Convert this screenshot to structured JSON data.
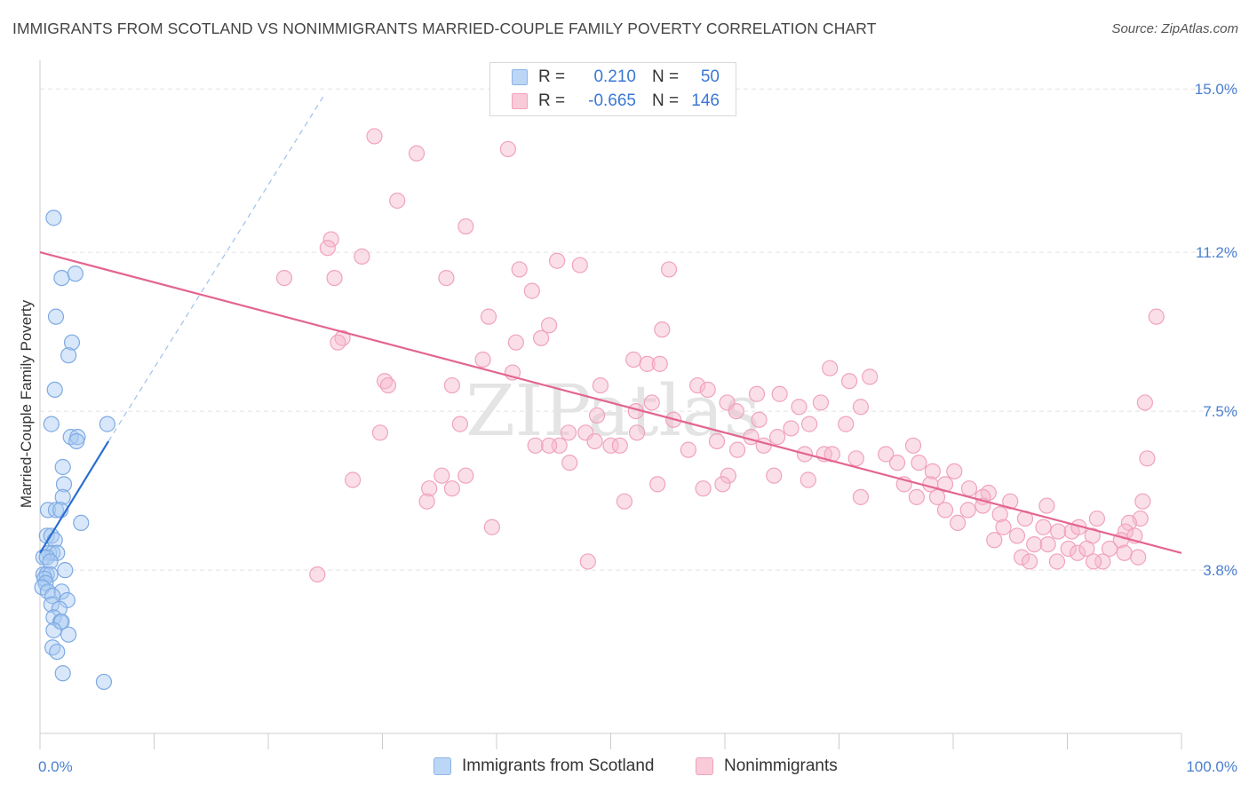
{
  "title": "IMMIGRANTS FROM SCOTLAND VS NONIMMIGRANTS MARRIED-COUPLE FAMILY POVERTY CORRELATION CHART",
  "source": "Source: ZipAtlas.com",
  "watermark": "ZIPatlas",
  "legend": {
    "rows": [
      {
        "r_label": "R =",
        "r_value": "0.210",
        "n_label": "N =",
        "n_value": "50",
        "color": "#a9c9f2"
      },
      {
        "r_label": "R =",
        "r_value": "-0.665",
        "n_label": "N =",
        "n_value": "146",
        "color": "#f6b9cb"
      }
    ]
  },
  "bottom_legend": {
    "series1": "Immigrants from Scotland",
    "series2": "Nonimmigrants"
  },
  "chart_data": {
    "type": "scatter",
    "title": "IMMIGRANTS FROM SCOTLAND VS NONIMMIGRANTS MARRIED-COUPLE FAMILY POVERTY CORRELATION CHART",
    "xlabel": "",
    "ylabel": "Married-Couple Family Poverty",
    "xlim": [
      0,
      100
    ],
    "ylim": [
      0,
      15.5
    ],
    "x_tick_labels": [
      "0.0%",
      "100.0%"
    ],
    "y_ticks": [
      3.8,
      7.5,
      11.2,
      15.0
    ],
    "y_tick_labels": [
      "3.8%",
      "7.5%",
      "11.2%",
      "15.0%"
    ],
    "grid": true,
    "colors": {
      "series1": "#a9c9f2",
      "series1_line": "#2b6fd1",
      "series2": "#f6b9cb",
      "series2_line": "#e36591"
    },
    "series": [
      {
        "name": "Immigrants from Scotland",
        "trend": {
          "x": [
            0,
            6
          ],
          "y": [
            4.2,
            6.8
          ]
        },
        "trend_extension": {
          "x": [
            6,
            25
          ],
          "y": [
            6.8,
            14.9
          ]
        },
        "points": [
          [
            1.2,
            12.0
          ],
          [
            1.9,
            10.6
          ],
          [
            3.1,
            10.7
          ],
          [
            1.4,
            9.7
          ],
          [
            2.8,
            9.1
          ],
          [
            2.5,
            8.8
          ],
          [
            1.3,
            8.0
          ],
          [
            1.0,
            7.2
          ],
          [
            5.9,
            7.2
          ],
          [
            2.7,
            6.9
          ],
          [
            3.3,
            6.9
          ],
          [
            3.2,
            6.8
          ],
          [
            2.0,
            6.2
          ],
          [
            2.1,
            5.8
          ],
          [
            2.0,
            5.5
          ],
          [
            0.7,
            5.2
          ],
          [
            1.4,
            5.2
          ],
          [
            1.8,
            5.2
          ],
          [
            3.6,
            4.9
          ],
          [
            0.6,
            4.6
          ],
          [
            1.0,
            4.6
          ],
          [
            1.3,
            4.5
          ],
          [
            0.8,
            4.2
          ],
          [
            1.1,
            4.2
          ],
          [
            1.5,
            4.2
          ],
          [
            0.3,
            4.1
          ],
          [
            0.6,
            4.1
          ],
          [
            0.9,
            4.0
          ],
          [
            2.2,
            3.8
          ],
          [
            0.3,
            3.7
          ],
          [
            0.6,
            3.7
          ],
          [
            0.9,
            3.7
          ],
          [
            0.4,
            3.6
          ],
          [
            0.5,
            3.5
          ],
          [
            0.2,
            3.4
          ],
          [
            0.7,
            3.3
          ],
          [
            1.9,
            3.3
          ],
          [
            1.1,
            3.2
          ],
          [
            2.4,
            3.1
          ],
          [
            1.0,
            3.0
          ],
          [
            1.7,
            2.9
          ],
          [
            1.2,
            2.7
          ],
          [
            1.8,
            2.6
          ],
          [
            1.9,
            2.6
          ],
          [
            1.2,
            2.4
          ],
          [
            2.5,
            2.3
          ],
          [
            1.1,
            2.0
          ],
          [
            1.5,
            1.9
          ],
          [
            2.0,
            1.4
          ],
          [
            5.6,
            1.2
          ]
        ]
      },
      {
        "name": "Nonimmigrants",
        "trend": {
          "x": [
            0,
            100
          ],
          "y": [
            11.2,
            4.2
          ]
        },
        "points": [
          [
            29.3,
            13.9
          ],
          [
            33.0,
            13.5
          ],
          [
            41.0,
            13.6
          ],
          [
            31.3,
            12.4
          ],
          [
            37.3,
            11.8
          ],
          [
            25.5,
            11.5
          ],
          [
            25.2,
            11.3
          ],
          [
            28.2,
            11.1
          ],
          [
            45.3,
            11.0
          ],
          [
            47.3,
            10.9
          ],
          [
            42.0,
            10.8
          ],
          [
            21.4,
            10.6
          ],
          [
            25.8,
            10.6
          ],
          [
            35.6,
            10.6
          ],
          [
            55.1,
            10.8
          ],
          [
            43.1,
            10.3
          ],
          [
            39.3,
            9.7
          ],
          [
            44.6,
            9.5
          ],
          [
            54.5,
            9.4
          ],
          [
            43.9,
            9.2
          ],
          [
            26.5,
            9.2
          ],
          [
            26.1,
            9.1
          ],
          [
            41.7,
            9.1
          ],
          [
            97.8,
            9.7
          ],
          [
            38.8,
            8.7
          ],
          [
            52.0,
            8.7
          ],
          [
            53.2,
            8.6
          ],
          [
            54.3,
            8.6
          ],
          [
            69.2,
            8.5
          ],
          [
            72.7,
            8.3
          ],
          [
            70.9,
            8.2
          ],
          [
            41.4,
            8.4
          ],
          [
            30.2,
            8.2
          ],
          [
            30.5,
            8.1
          ],
          [
            36.1,
            8.1
          ],
          [
            49.1,
            8.1
          ],
          [
            57.6,
            8.1
          ],
          [
            58.5,
            8.0
          ],
          [
            62.8,
            7.9
          ],
          [
            64.8,
            7.9
          ],
          [
            53.6,
            7.7
          ],
          [
            60.2,
            7.7
          ],
          [
            61.0,
            7.5
          ],
          [
            66.5,
            7.6
          ],
          [
            68.4,
            7.7
          ],
          [
            96.8,
            7.7
          ],
          [
            52.2,
            7.5
          ],
          [
            71.9,
            7.6
          ],
          [
            48.8,
            7.4
          ],
          [
            55.5,
            7.3
          ],
          [
            63.0,
            7.3
          ],
          [
            65.8,
            7.1
          ],
          [
            67.4,
            7.2
          ],
          [
            70.6,
            7.2
          ],
          [
            36.8,
            7.2
          ],
          [
            47.8,
            7.0
          ],
          [
            29.8,
            7.0
          ],
          [
            46.3,
            7.0
          ],
          [
            52.3,
            7.0
          ],
          [
            62.3,
            6.9
          ],
          [
            64.6,
            6.9
          ],
          [
            48.6,
            6.8
          ],
          [
            45.5,
            6.7
          ],
          [
            50.0,
            6.7
          ],
          [
            50.8,
            6.7
          ],
          [
            59.3,
            6.8
          ],
          [
            63.4,
            6.7
          ],
          [
            76.5,
            6.7
          ],
          [
            43.4,
            6.7
          ],
          [
            44.6,
            6.7
          ],
          [
            56.8,
            6.6
          ],
          [
            61.1,
            6.6
          ],
          [
            67.0,
            6.5
          ],
          [
            68.7,
            6.5
          ],
          [
            69.4,
            6.5
          ],
          [
            71.5,
            6.4
          ],
          [
            74.1,
            6.5
          ],
          [
            75.1,
            6.3
          ],
          [
            77.0,
            6.3
          ],
          [
            78.2,
            6.1
          ],
          [
            80.1,
            6.1
          ],
          [
            97.0,
            6.4
          ],
          [
            46.4,
            6.3
          ],
          [
            35.2,
            6.0
          ],
          [
            37.3,
            6.0
          ],
          [
            27.4,
            5.9
          ],
          [
            60.3,
            6.0
          ],
          [
            64.3,
            6.0
          ],
          [
            67.3,
            5.9
          ],
          [
            75.7,
            5.8
          ],
          [
            78.0,
            5.8
          ],
          [
            59.8,
            5.8
          ],
          [
            54.1,
            5.8
          ],
          [
            58.1,
            5.7
          ],
          [
            36.1,
            5.7
          ],
          [
            34.1,
            5.7
          ],
          [
            79.3,
            5.8
          ],
          [
            76.8,
            5.5
          ],
          [
            81.4,
            5.7
          ],
          [
            83.1,
            5.6
          ],
          [
            78.6,
            5.5
          ],
          [
            71.9,
            5.5
          ],
          [
            82.6,
            5.5
          ],
          [
            85.0,
            5.4
          ],
          [
            88.2,
            5.3
          ],
          [
            96.6,
            5.4
          ],
          [
            33.9,
            5.4
          ],
          [
            51.2,
            5.4
          ],
          [
            79.3,
            5.2
          ],
          [
            81.3,
            5.2
          ],
          [
            82.6,
            5.3
          ],
          [
            84.1,
            5.1
          ],
          [
            86.3,
            5.0
          ],
          [
            92.6,
            5.0
          ],
          [
            96.4,
            5.0
          ],
          [
            95.4,
            4.9
          ],
          [
            80.4,
            4.9
          ],
          [
            84.4,
            4.8
          ],
          [
            87.9,
            4.8
          ],
          [
            89.2,
            4.7
          ],
          [
            90.4,
            4.7
          ],
          [
            91.0,
            4.8
          ],
          [
            92.2,
            4.6
          ],
          [
            95.1,
            4.7
          ],
          [
            39.6,
            4.8
          ],
          [
            83.6,
            4.5
          ],
          [
            85.6,
            4.6
          ],
          [
            87.1,
            4.4
          ],
          [
            88.3,
            4.4
          ],
          [
            90.1,
            4.3
          ],
          [
            90.9,
            4.2
          ],
          [
            91.7,
            4.3
          ],
          [
            93.7,
            4.3
          ],
          [
            94.7,
            4.5
          ],
          [
            95.9,
            4.6
          ],
          [
            93.1,
            4.0
          ],
          [
            95.0,
            4.2
          ],
          [
            96.2,
            4.1
          ],
          [
            86.0,
            4.1
          ],
          [
            86.7,
            4.0
          ],
          [
            89.1,
            4.0
          ],
          [
            92.3,
            4.0
          ],
          [
            48.0,
            4.0
          ],
          [
            24.3,
            3.7
          ]
        ]
      }
    ]
  }
}
